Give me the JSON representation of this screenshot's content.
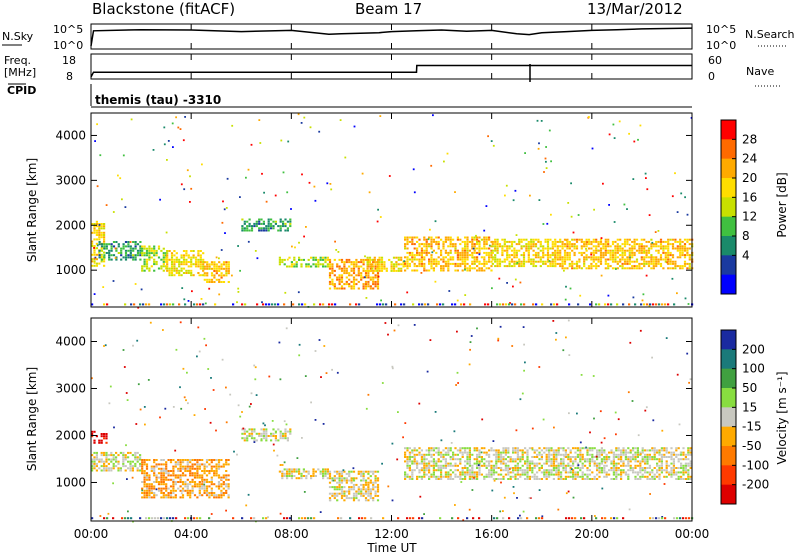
{
  "header": {
    "station": "Blackstone (fitACF)",
    "beam": "Beam 17",
    "date": "13/Mar/2012"
  },
  "top_panels": {
    "nsky_label": "N.Sky",
    "nsky_ticks": [
      "10^5",
      "10^0"
    ],
    "nsearch_label": "N.Search",
    "nsearch_ticks": [
      "10^5",
      "10^0"
    ],
    "freq_label": "Freq.",
    "freq_unit": "[MHz]",
    "freq_ticks": [
      "18",
      "8"
    ],
    "nave_label": "Nave",
    "nave_ticks": [
      "60",
      "0"
    ],
    "cpid_label": "CPID",
    "cpid_text": "themis (tau) -3310"
  },
  "colorbars": {
    "power": {
      "label": "Power [dB]",
      "ticks": [
        "28",
        "24",
        "20",
        "16",
        "12",
        "8",
        "4"
      ],
      "colors": [
        "#ff0000",
        "#ff6a00",
        "#ffaa00",
        "#ffdd00",
        "#c8e000",
        "#40c040",
        "#1a8a6a",
        "#1a3aa0",
        "#0000ff"
      ]
    },
    "velocity": {
      "label": "Velocity [m s⁻¹]",
      "ticks": [
        "200",
        "100",
        "50",
        "15",
        "-15",
        "-50",
        "-100",
        "-200"
      ],
      "colors": [
        "#1a2aa0",
        "#1a7a7a",
        "#40a040",
        "#88dd40",
        "#c8c8c0",
        "#ffaa00",
        "#ff7a00",
        "#ff3a00",
        "#dd0000"
      ]
    }
  },
  "chart_data": [
    {
      "type": "line",
      "title": "N.Sky",
      "x": [
        0,
        0.1,
        2,
        4,
        6,
        8,
        9.5,
        10,
        11.5,
        12,
        13,
        14,
        15,
        16,
        17,
        17.5,
        18,
        19,
        20,
        21,
        22,
        23,
        24
      ],
      "y_log10": [
        0,
        4,
        4.3,
        4.2,
        3.8,
        4.1,
        3.1,
        3.2,
        3.5,
        3.8,
        4,
        4.2,
        3.9,
        4.1,
        3.2,
        3.0,
        3.5,
        3.8,
        4.1,
        4.3,
        4.5,
        4.6,
        4.7
      ],
      "ylim": [
        0,
        5
      ]
    },
    {
      "type": "line",
      "title": "Freq.",
      "x": [
        0,
        0.1,
        13,
        13.01,
        17.5,
        17.51,
        24
      ],
      "freq": [
        8,
        10.3,
        10.3,
        13.5,
        13.5,
        13.5,
        13.5
      ],
      "ylim": [
        8,
        18
      ]
    },
    {
      "type": "heatmap",
      "title": "Power [dB]",
      "ylabel": "Slant Range [km]",
      "xlabel": "Time UT",
      "xlim": [
        0,
        24
      ],
      "ylim": [
        180,
        4500
      ],
      "x_ticks": [
        "00:00",
        "04:00",
        "08:00",
        "12:00",
        "16:00",
        "20:00",
        "00:00"
      ],
      "y_ticks": [
        1000,
        2000,
        3000,
        4000
      ],
      "clim": [
        0,
        30
      ],
      "echo_regions": [
        {
          "t0": 0.0,
          "t1": 0.5,
          "r0": 1100,
          "r1": 2100,
          "val": 18
        },
        {
          "t0": 0.3,
          "t1": 2.0,
          "r0": 1250,
          "r1": 1650,
          "val": 10
        },
        {
          "t0": 2.0,
          "t1": 3.0,
          "r0": 1000,
          "r1": 1550,
          "val": 14
        },
        {
          "t0": 3.0,
          "t1": 4.5,
          "r0": 900,
          "r1": 1450,
          "val": 18
        },
        {
          "t0": 4.5,
          "t1": 5.5,
          "r0": 750,
          "r1": 1200,
          "val": 20
        },
        {
          "t0": 6.0,
          "t1": 8.0,
          "r0": 1900,
          "r1": 2150,
          "val": 10
        },
        {
          "t0": 7.5,
          "t1": 9.5,
          "r0": 1100,
          "r1": 1300,
          "val": 14
        },
        {
          "t0": 9.5,
          "t1": 11.5,
          "r0": 600,
          "r1": 1250,
          "val": 22
        },
        {
          "t0": 11.0,
          "t1": 12.5,
          "r0": 1000,
          "r1": 1300,
          "val": 18
        },
        {
          "t0": 12.5,
          "t1": 16.0,
          "r0": 1000,
          "r1": 1750,
          "val": 20
        },
        {
          "t0": 16.0,
          "t1": 18.5,
          "r0": 1100,
          "r1": 1700,
          "val": 18
        },
        {
          "t0": 18.5,
          "t1": 24.0,
          "r0": 1050,
          "r1": 1700,
          "val": 20
        }
      ]
    },
    {
      "type": "heatmap",
      "title": "Velocity [m s⁻¹]",
      "ylabel": "Slant Range [km]",
      "xlabel": "Time UT",
      "xlim": [
        0,
        24
      ],
      "ylim": [
        180,
        4500
      ],
      "x_ticks": [
        "00:00",
        "04:00",
        "08:00",
        "12:00",
        "16:00",
        "20:00",
        "00:00"
      ],
      "y_ticks": [
        1000,
        2000,
        3000,
        4000
      ],
      "clim": [
        -200,
        200
      ],
      "echo_regions": [
        {
          "t0": 0.0,
          "t1": 0.6,
          "r0": 1850,
          "r1": 2100,
          "val": -200
        },
        {
          "t0": 0.0,
          "t1": 2.0,
          "r0": 1250,
          "r1": 1650,
          "val": 0
        },
        {
          "t0": 2.0,
          "t1": 5.5,
          "r0": 700,
          "r1": 1500,
          "val": -50
        },
        {
          "t0": 6.0,
          "t1": 8.0,
          "r0": 1900,
          "r1": 2150,
          "val": 0
        },
        {
          "t0": 7.5,
          "t1": 9.5,
          "r0": 1100,
          "r1": 1300,
          "val": 0
        },
        {
          "t0": 9.5,
          "t1": 11.5,
          "r0": 600,
          "r1": 1250,
          "val": -15
        },
        {
          "t0": 12.5,
          "t1": 24.0,
          "r0": 1050,
          "r1": 1750,
          "val": 0
        }
      ]
    }
  ],
  "axis": {
    "x_label": "Time UT",
    "y_label": "Slant Range [km]"
  }
}
